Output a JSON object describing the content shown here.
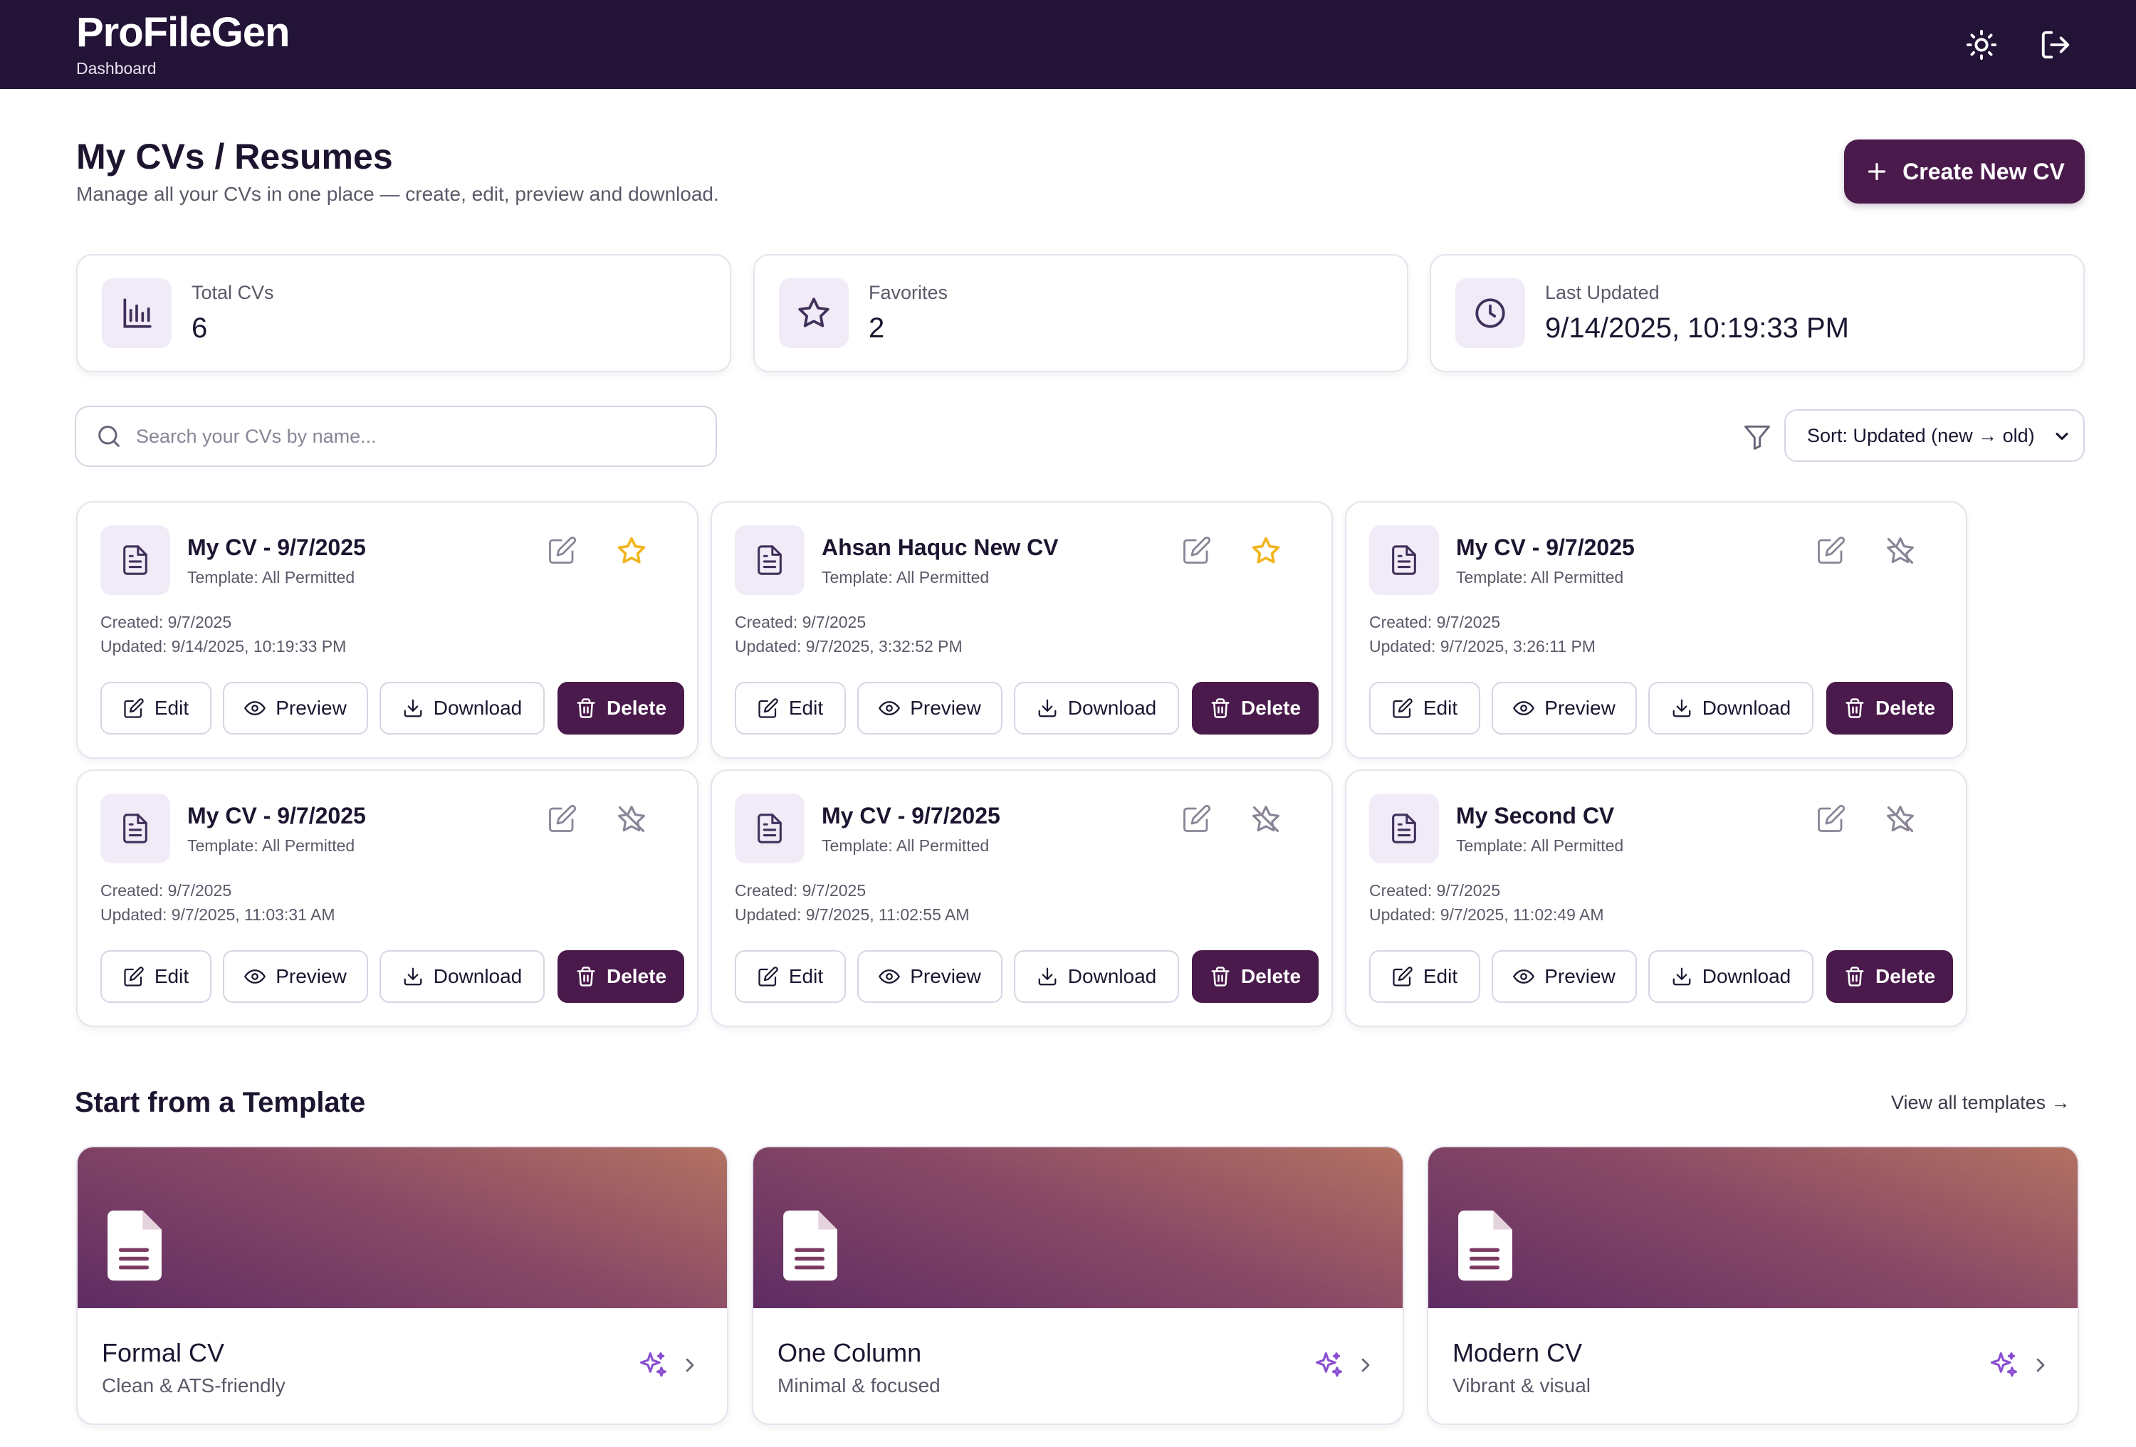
{
  "header": {
    "app_title": "ProFileGen",
    "subtitle": "Dashboard",
    "theme_icon": "sun-icon",
    "logout_icon": "logout-icon"
  },
  "page": {
    "title": "My CVs / Resumes",
    "subtitle": "Manage all your CVs in one place — create, edit, preview and download.",
    "create_button": "Create New CV"
  },
  "stats": [
    {
      "label": "Total CVs",
      "value": "6",
      "icon": "bar-chart-icon"
    },
    {
      "label": "Favorites",
      "value": "2",
      "icon": "star-icon"
    },
    {
      "label": "Last Updated",
      "value": "9/14/2025, 10:19:33 PM",
      "icon": "clock-icon"
    }
  ],
  "search": {
    "placeholder": "Search your CVs by name..."
  },
  "sort": {
    "selected": "Sort: Updated (new → old)"
  },
  "actions": {
    "edit": "Edit",
    "preview": "Preview",
    "download": "Download",
    "delete": "Delete"
  },
  "cvs": [
    {
      "name": "My CV - 9/7/2025",
      "template": "Template: All Permitted",
      "created": "Created: 9/7/2025",
      "updated": "Updated: 9/14/2025, 10:19:33 PM",
      "favorite": true
    },
    {
      "name": "Ahsan Haquc New CV",
      "template": "Template: All Permitted",
      "created": "Created: 9/7/2025",
      "updated": "Updated: 9/7/2025, 3:32:52 PM",
      "favorite": true
    },
    {
      "name": "My CV - 9/7/2025",
      "template": "Template: All Permitted",
      "created": "Created: 9/7/2025",
      "updated": "Updated: 9/7/2025, 3:26:11 PM",
      "favorite": false
    },
    {
      "name": "My CV - 9/7/2025",
      "template": "Template: All Permitted",
      "created": "Created: 9/7/2025",
      "updated": "Updated: 9/7/2025, 11:03:31 AM",
      "favorite": false
    },
    {
      "name": "My CV - 9/7/2025",
      "template": "Template: All Permitted",
      "created": "Created: 9/7/2025",
      "updated": "Updated: 9/7/2025, 11:02:55 AM",
      "favorite": false
    },
    {
      "name": "My Second CV",
      "template": "Template: All Permitted",
      "created": "Created: 9/7/2025",
      "updated": "Updated: 9/7/2025, 11:02:49 AM",
      "favorite": false
    }
  ],
  "templates": {
    "title": "Start from a Template",
    "view_all": "View all templates →",
    "items": [
      {
        "name": "Formal CV",
        "description": "Clean & ATS-friendly"
      },
      {
        "name": "One Column",
        "description": "Minimal & focused"
      },
      {
        "name": "Modern CV",
        "description": "Vibrant & visual"
      }
    ]
  },
  "colors": {
    "header_bg": "#221337",
    "primary": "#4a1a4c",
    "favorite_star": "#f2b51d",
    "icon_tile_bg": "#f1ebf8"
  }
}
